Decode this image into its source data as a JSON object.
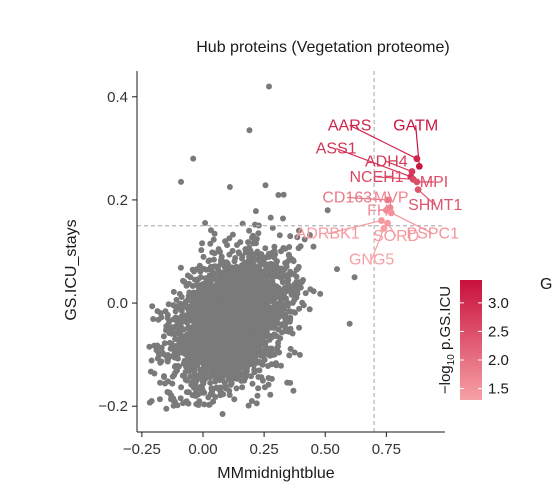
{
  "chart_data": {
    "type": "scatter",
    "title": "Hub proteins (Vegetation proteome)",
    "xlabel": "MMmidnightblue",
    "ylabel": "GS.ICU_stays",
    "xlim": [
      -0.27,
      0.99
    ],
    "ylim": [
      -0.25,
      0.45
    ],
    "xticks": [
      -0.25,
      0.0,
      0.25,
      0.5,
      0.75
    ],
    "yticks": [
      -0.2,
      0.0,
      0.2,
      0.4
    ],
    "xtick_labels": [
      "−0.25",
      "0.00",
      "0.25",
      "0.50",
      "0.75"
    ],
    "ytick_labels": [
      "−0.2",
      "0.0",
      "0.2",
      "0.4"
    ],
    "grid": false,
    "thresholds": {
      "mm": 0.7,
      "gs": 0.15
    },
    "background_points": {
      "color": "#7a7a7a",
      "description_count": 3000,
      "center": [
        0.12,
        -0.03
      ],
      "spread": [
        0.12,
        0.06
      ],
      "outliers": [
        {
          "x": 0.27,
          "y": 0.42
        },
        {
          "x": 0.19,
          "y": 0.335
        },
        {
          "x": -0.04,
          "y": 0.28
        },
        {
          "x": -0.09,
          "y": 0.235
        },
        {
          "x": 0.11,
          "y": 0.225
        },
        {
          "x": 0.33,
          "y": 0.21
        },
        {
          "x": 0.51,
          "y": 0.18
        },
        {
          "x": -0.21,
          "y": -0.19
        },
        {
          "x": -0.15,
          "y": -0.205
        },
        {
          "x": 0.08,
          "y": -0.215
        },
        {
          "x": 0.2,
          "y": -0.19
        },
        {
          "x": 0.37,
          "y": -0.17
        },
        {
          "x": 0.62,
          "y": 0.05
        },
        {
          "x": 0.6,
          "y": -0.04
        }
      ]
    },
    "hub_proteins": [
      {
        "name": "GATM",
        "x": 0.885,
        "y": 0.265,
        "logp": 3.3,
        "label_x": 0.87,
        "label_y": 0.335
      },
      {
        "name": "AARS",
        "x": 0.875,
        "y": 0.28,
        "logp": 3.1,
        "label_x": 0.6,
        "label_y": 0.335
      },
      {
        "name": "ASS1",
        "x": 0.85,
        "y": 0.245,
        "logp": 2.9,
        "label_x": 0.545,
        "label_y": 0.29
      },
      {
        "name": "ADH4",
        "x": 0.855,
        "y": 0.255,
        "logp": 2.8,
        "label_x": 0.75,
        "label_y": 0.265
      },
      {
        "name": "NCEH1",
        "x": 0.86,
        "y": 0.24,
        "logp": 2.6,
        "label_x": 0.71,
        "label_y": 0.235
      },
      {
        "name": "MPI",
        "x": 0.875,
        "y": 0.235,
        "logp": 2.5,
        "label_x": 0.945,
        "label_y": 0.225
      },
      {
        "name": "SHMT1",
        "x": 0.88,
        "y": 0.22,
        "logp": 2.4,
        "label_x": 0.95,
        "label_y": 0.18
      },
      {
        "name": "CD163",
        "x": 0.755,
        "y": 0.2,
        "logp": 1.9,
        "label_x": 0.59,
        "label_y": 0.195
      },
      {
        "name": "MVP",
        "x": 0.765,
        "y": 0.185,
        "logp": 1.7,
        "label_x": 0.77,
        "label_y": 0.195
      },
      {
        "name": "FH",
        "x": 0.75,
        "y": 0.18,
        "logp": 1.6,
        "label_x": 0.715,
        "label_y": 0.17
      },
      {
        "name": "PSPC1",
        "x": 0.77,
        "y": 0.175,
        "logp": 1.5,
        "label_x": 0.94,
        "label_y": 0.125
      },
      {
        "name": "ADRBK1",
        "x": 0.73,
        "y": 0.16,
        "logp": 1.4,
        "label_x": 0.51,
        "label_y": 0.125
      },
      {
        "name": "SORD",
        "x": 0.755,
        "y": 0.155,
        "logp": 1.4,
        "label_x": 0.79,
        "label_y": 0.12
      },
      {
        "name": "GNG5",
        "x": 0.74,
        "y": 0.145,
        "logp": 1.3,
        "label_x": 0.69,
        "label_y": 0.075
      }
    ],
    "colorbar": {
      "title": "−log₁₀ p.GS.ICU",
      "title_main": "−log",
      "title_sub": "10",
      "title_rest": " p.GS.ICU",
      "range": [
        1.3,
        3.4
      ],
      "ticks": [
        1.5,
        2.0,
        2.5,
        3.0
      ],
      "tick_labels": [
        "1.5",
        "2.0",
        "2.5",
        "3.0"
      ],
      "low_color": "#f7a1a5",
      "high_color": "#c8103c"
    },
    "cut_off_text": "G"
  }
}
